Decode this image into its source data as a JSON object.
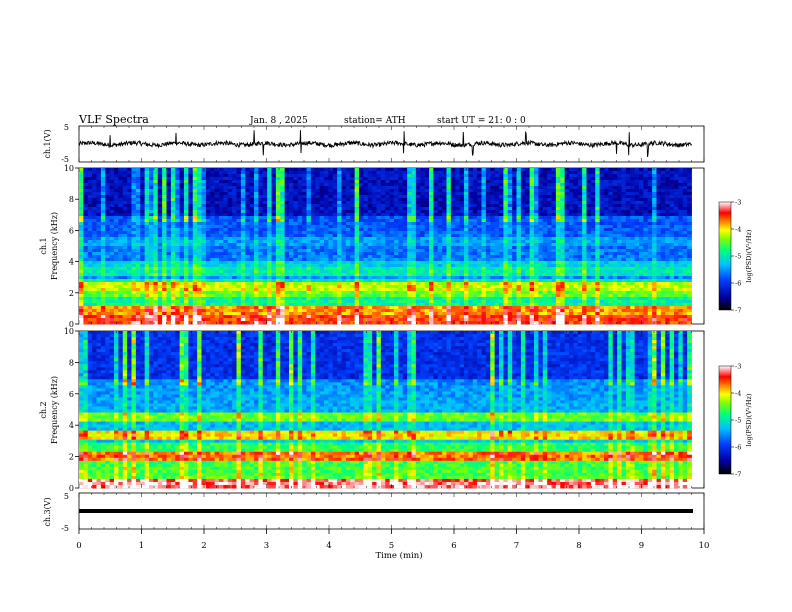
{
  "header": {
    "title": "VLF  Spectra",
    "date": "Jan.  8   , 2025",
    "station": "station= ATH",
    "start": "start  UT  =    21: 0   : 0"
  },
  "chart_data": [
    {
      "type": "line",
      "panel": "ch1-waveform",
      "ylabel": "ch.1(V)",
      "ylim": [
        -5,
        5
      ],
      "yticks": [
        "5",
        "-5"
      ],
      "xlim": [
        0,
        10
      ],
      "description_values": {
        "baseline": 0,
        "amplitude": 0.6,
        "spikes_at_min": [
          0.5,
          1.55,
          2.8,
          2.95,
          3.55,
          5.2,
          6.15,
          6.3,
          7.15,
          8.6,
          8.8,
          9.1
        ]
      }
    },
    {
      "type": "heatmap",
      "panel": "ch1-spectrogram",
      "ylabel": "ch.1\nFrequency (kHz)",
      "ylabel_line1": "ch.1",
      "ylabel_line2": "Frequency  (kHz)",
      "ylim": [
        0,
        10
      ],
      "yticks": [
        "0",
        "2",
        "4",
        "6",
        "8",
        "10"
      ],
      "xlim": [
        0,
        9.8
      ],
      "colorbar": {
        "label": "log(PSD)(V²/Hz)",
        "min": -7,
        "max": -3,
        "ticks": [
          "-3",
          "-4",
          "-5",
          "-6",
          "-7"
        ]
      },
      "bands_kHz": [
        {
          "f": 0.3,
          "level": -3.5
        },
        {
          "f": 0.8,
          "level": -3.8
        },
        {
          "f": 2.0,
          "level": -4.5
        },
        {
          "f": 2.4,
          "level": -4.2
        },
        {
          "f": 3.3,
          "level": -5.0
        },
        {
          "f": 3.8,
          "level": -5.2
        },
        {
          "f": 5.3,
          "level": -5.5
        }
      ]
    },
    {
      "type": "heatmap",
      "panel": "ch2-spectrogram",
      "ylabel_line1": "ch.2",
      "ylabel_line2": "Frequency  (kHz)",
      "ylim": [
        0,
        10
      ],
      "yticks": [
        "0",
        "2",
        "4",
        "6",
        "8",
        "10"
      ],
      "xlim": [
        0,
        9.8
      ],
      "colorbar": {
        "label": "log(PSD)(V²/Hz)",
        "min": -7,
        "max": -3,
        "ticks": [
          "-3",
          "-4",
          "-5",
          "-6",
          "-7"
        ]
      },
      "bands_kHz": [
        {
          "f": 0.3,
          "level": -3.5
        },
        {
          "f": 2.0,
          "level": -4.0
        },
        {
          "f": 3.4,
          "level": -4.3
        },
        {
          "f": 4.6,
          "level": -4.8
        }
      ]
    },
    {
      "type": "line",
      "panel": "ch3-waveform",
      "ylabel": "ch.3(V)",
      "ylim": [
        -5,
        5
      ],
      "yticks": [
        "5",
        "-5"
      ],
      "xlim": [
        0,
        10
      ],
      "values_constant": 0,
      "xlabel": "Time  (min)",
      "xticks": [
        "0",
        "1",
        "2",
        "3",
        "4",
        "5",
        "6",
        "7",
        "8",
        "9",
        "10"
      ]
    }
  ],
  "colors": {
    "axes": "#000000",
    "trace": "#000000",
    "background": "#ffffff"
  }
}
